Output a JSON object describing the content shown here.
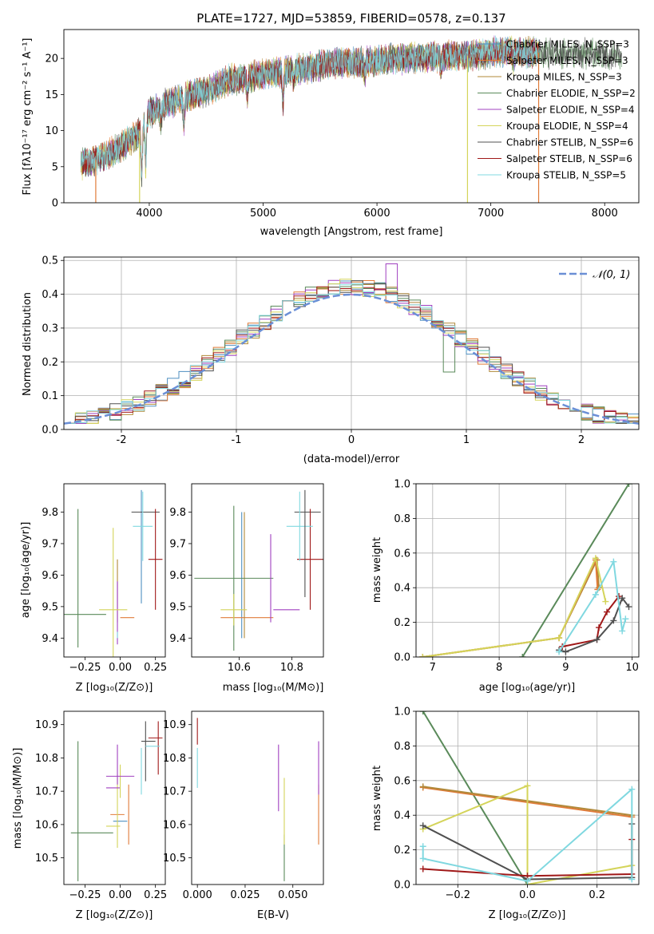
{
  "colors": {
    "chabrier_miles": "#4f8fc0",
    "salpeter_miles": "#e07b39",
    "kroupa_miles": "#b0893a",
    "chabrier_elodie": "#5a8a5a",
    "salpeter_elodie": "#a040c0",
    "kroupa_elodie": "#d4d45a",
    "chabrier_stelib": "#505050",
    "salpeter_stelib": "#a01818",
    "kroupa_stelib": "#80d8e0",
    "gaussian": "#6b8fd6",
    "grid": "#b0b0b0"
  },
  "chart_data": [
    {
      "id": "spectrum",
      "type": "line",
      "title": "PLATE=1727, MJD=53859, FIBERID=0578, z=0.137",
      "xlabel": "wavelength [Angstrom, rest frame]",
      "ylabel": "Flux [fλ10⁻¹⁷ erg cm⁻² s⁻¹ A⁻¹]",
      "xlim": [
        3250,
        8300
      ],
      "ylim": [
        0,
        24
      ],
      "xticks": [
        4000,
        5000,
        6000,
        7000,
        8000
      ],
      "yticks": [
        0,
        5,
        10,
        15,
        20
      ],
      "grid": false,
      "legend_position": "top-right",
      "legend": [
        "Chabrier MILES, N_SSP=3",
        "Salpeter MILES, N_SSP=3",
        "Kroupa MILES, N_SSP=3",
        "Chabrier ELODIE, N_SSP=2",
        "Salpeter ELODIE, N_SSP=4",
        "Kroupa ELODIE, N_SSP=4",
        "Chabrier STELIB, N_SSP=6",
        "Salpeter STELIB, N_SSP=6",
        "Kroupa STELIB, N_SSP=5"
      ],
      "continuum": [
        [
          3350,
          5.2
        ],
        [
          3500,
          5.8
        ],
        [
          3700,
          7.2
        ],
        [
          3900,
          9.5
        ],
        [
          4000,
          12.5
        ],
        [
          4200,
          14.0
        ],
        [
          4500,
          15.5
        ],
        [
          4700,
          17.0
        ],
        [
          5000,
          17.8
        ],
        [
          5300,
          18.5
        ],
        [
          5600,
          19.3
        ],
        [
          5900,
          19.5
        ],
        [
          6200,
          20.0
        ],
        [
          6500,
          20.2
        ],
        [
          6800,
          20.4
        ],
        [
          7100,
          21.0
        ],
        [
          7400,
          20.8
        ],
        [
          7700,
          20.7
        ],
        [
          8000,
          20.5
        ],
        [
          8150,
          20.3
        ]
      ],
      "absorption_lines": [
        [
          3934,
          7.0
        ],
        [
          3969,
          6.0
        ],
        [
          4102,
          2.0
        ],
        [
          4304,
          3.5
        ],
        [
          4861,
          2.5
        ],
        [
          5175,
          4.5
        ],
        [
          5270,
          1.5
        ],
        [
          5893,
          2.0
        ],
        [
          6563,
          1.5
        ],
        [
          7200,
          1.5
        ]
      ],
      "dropouts": [
        [
          3530,
          "salpeter_miles"
        ],
        [
          3915,
          "kroupa_elodie"
        ],
        [
          6795,
          "kroupa_elodie"
        ],
        [
          7420,
          "salpeter_miles"
        ]
      ],
      "series_xrange": [
        [
          3400,
          7420
        ],
        [
          3400,
          7420
        ],
        [
          3400,
          7420
        ],
        [
          3400,
          8150
        ],
        [
          3400,
          7420
        ],
        [
          3400,
          7420
        ],
        [
          3400,
          8150
        ],
        [
          3400,
          7420
        ],
        [
          3400,
          7420
        ]
      ]
    },
    {
      "id": "residuals",
      "type": "histogram",
      "xlabel": "(data-model)/error",
      "ylabel": "Normed distribution",
      "xlim": [
        -2.5,
        2.5
      ],
      "ylim": [
        0,
        0.51
      ],
      "xticks": [
        -2,
        -1,
        0,
        1,
        2
      ],
      "yticks": [
        0.0,
        0.1,
        0.2,
        0.3,
        0.4,
        0.5
      ],
      "grid": true,
      "legend_position": "top-right",
      "legend": [
        "𝒩(0, 1)"
      ],
      "bins": {
        "start": -2.5,
        "width": 0.1,
        "count": 50
      }
    },
    {
      "id": "age_vs_Z",
      "type": "errorbar",
      "xlabel": "Z [log₁₀(Z/Z⊙)]",
      "ylabel": "age  [log₁₀(age/yr)]",
      "xlim": [
        -0.4,
        0.32
      ],
      "ylim": [
        9.34,
        9.89
      ],
      "xticks": [
        -0.25,
        0.0,
        0.25
      ],
      "xticklabels": [
        "−0.25",
        "0.00",
        "0.25"
      ],
      "yticks": [
        9.4,
        9.5,
        9.6,
        9.7,
        9.8
      ],
      "grid": false,
      "points": [
        {
          "series": "chabrier_miles",
          "x": 0.15,
          "xerr": 0.0,
          "y": 9.69,
          "yerr": 0.18
        },
        {
          "series": "salpeter_miles",
          "x": 0.05,
          "xerr": 0.05,
          "y": 9.465,
          "yerr": 0.0
        },
        {
          "series": "kroupa_miles",
          "x": -0.02,
          "xerr": 0.0,
          "y": 9.55,
          "yerr": 0.1
        },
        {
          "series": "chabrier_elodie",
          "x": -0.3,
          "xerr": 0.0,
          "y": 9.59,
          "yerr": 0.22
        },
        {
          "series": "salpeter_elodie",
          "x": -0.02,
          "xerr": 0.0,
          "y": 9.48,
          "yerr": 0.1
        },
        {
          "series": "kroupa_elodie",
          "x": -0.05,
          "xerr": 0.1,
          "y": 9.49,
          "yerr": 0.26
        },
        {
          "series": "chabrier_stelib",
          "x": 0.18,
          "xerr": 0.1,
          "y": 9.8,
          "yerr": 0.0
        },
        {
          "series": "salpeter_stelib",
          "x": 0.25,
          "xerr": 0.05,
          "y": 9.65,
          "yerr": 0.16
        },
        {
          "series": "kroupa_stelib",
          "x": 0.16,
          "xerr": 0.07,
          "y": 9.755,
          "yerr": 0.11
        },
        {
          "series": "chabrier_elodie",
          "x": -0.25,
          "xerr": 0.15,
          "y": 9.475,
          "yerr": 0.0
        },
        {
          "series": "kroupa_stelib",
          "x": -0.02,
          "xerr": 0.0,
          "y": 9.41,
          "yerr": 0.01
        }
      ]
    },
    {
      "id": "age_vs_mass",
      "type": "errorbar",
      "xlabel": "mass [log₁₀(M/M⊙)]",
      "ylabel": "",
      "xlim": [
        10.42,
        10.92
      ],
      "ylim": [
        9.34,
        9.89
      ],
      "xticks": [
        10.6,
        10.8
      ],
      "yticks": [
        9.4,
        9.5,
        9.6,
        9.7,
        9.8
      ],
      "grid": false,
      "points": [
        {
          "series": "chabrier_miles",
          "x": 10.61,
          "xerr": 0.0,
          "y": 9.6,
          "yerr": 0.2
        },
        {
          "series": "salpeter_miles",
          "x": 10.63,
          "xerr": 0.1,
          "y": 9.465,
          "yerr": 0.0
        },
        {
          "series": "kroupa_miles",
          "x": 10.62,
          "xerr": 0.0,
          "y": 9.6,
          "yerr": 0.2
        },
        {
          "series": "chabrier_elodie",
          "x": 10.58,
          "xerr": 0.15,
          "y": 9.59,
          "yerr": 0.23
        },
        {
          "series": "salpeter_elodie",
          "x": 10.72,
          "xerr": 0.0,
          "y": 9.59,
          "yerr": 0.14
        },
        {
          "series": "kroupa_elodie",
          "x": 10.58,
          "xerr": 0.05,
          "y": 9.49,
          "yerr": 0.05
        },
        {
          "series": "chabrier_stelib",
          "x": 10.86,
          "xerr": 0.05,
          "y": 9.8,
          "yerr": 0.0
        },
        {
          "series": "salpeter_stelib",
          "x": 10.87,
          "xerr": 0.05,
          "y": 9.65,
          "yerr": 0.16
        },
        {
          "series": "kroupa_stelib",
          "x": 10.83,
          "xerr": 0.05,
          "y": 9.755,
          "yerr": 0.11
        },
        {
          "series": "salpeter_elodie",
          "x": 10.78,
          "xerr": 0.05,
          "y": 9.49,
          "yerr": 0.0
        },
        {
          "series": "chabrier_stelib",
          "x": 10.85,
          "xerr": 0.0,
          "y": 9.7,
          "yerr": 0.17
        }
      ]
    },
    {
      "id": "mass_weight_vs_age",
      "type": "line",
      "xlabel": "age  [log₁₀(age/yr)]",
      "ylabel": "mass weight",
      "xlim": [
        6.75,
        10.1
      ],
      "ylim": [
        0,
        1.0
      ],
      "xticks": [
        7,
        8,
        9,
        10
      ],
      "yticks": [
        0.0,
        0.2,
        0.4,
        0.6,
        0.8,
        1.0
      ],
      "grid": true,
      "series": [
        {
          "key": "chabrier_elodie",
          "points": [
            [
              8.35,
              0.0
            ],
            [
              9.95,
              1.0
            ]
          ]
        },
        {
          "key": "kroupa_miles",
          "points": [
            [
              6.85,
              0.0
            ],
            [
              8.9,
              0.11
            ],
            [
              9.47,
              0.56
            ],
            [
              9.5,
              0.4
            ]
          ]
        },
        {
          "key": "salpeter_miles",
          "points": [
            [
              6.85,
              0.0
            ],
            [
              8.9,
              0.11
            ],
            [
              9.45,
              0.56
            ],
            [
              9.48,
              0.39
            ]
          ]
        },
        {
          "key": "kroupa_elodie",
          "points": [
            [
              6.85,
              0.0
            ],
            [
              8.9,
              0.11
            ],
            [
              9.45,
              0.57
            ],
            [
              9.6,
              0.32
            ]
          ]
        },
        {
          "key": "salpeter_stelib",
          "points": [
            [
              8.95,
              0.06
            ],
            [
              9.47,
              0.1
            ],
            [
              9.5,
              0.17
            ],
            [
              9.62,
              0.26
            ],
            [
              9.8,
              0.35
            ]
          ]
        },
        {
          "key": "chabrier_stelib",
          "points": [
            [
              8.9,
              0.04
            ],
            [
              9.0,
              0.03
            ],
            [
              9.47,
              0.1
            ],
            [
              9.72,
              0.21
            ],
            [
              9.85,
              0.34
            ],
            [
              9.95,
              0.29
            ]
          ]
        },
        {
          "key": "kroupa_stelib",
          "points": [
            [
              8.9,
              0.03
            ],
            [
              9.45,
              0.36
            ],
            [
              9.72,
              0.55
            ],
            [
              9.85,
              0.15
            ],
            [
              9.9,
              0.22
            ]
          ]
        }
      ]
    },
    {
      "id": "mass_vs_Z",
      "type": "errorbar",
      "xlabel": "Z [log₁₀(Z/Z⊙)]",
      "ylabel": "mass [log₁₀(M/M⊙)]",
      "xlim": [
        -0.4,
        0.32
      ],
      "ylim": [
        10.42,
        10.94
      ],
      "xticks": [
        -0.25,
        0.0,
        0.25
      ],
      "xticklabels": [
        "−0.25",
        "0.00",
        "0.25"
      ],
      "yticks": [
        10.5,
        10.6,
        10.7,
        10.8,
        10.9
      ],
      "grid": false,
      "points": [
        {
          "series": "chabrier_elodie",
          "x": -0.3,
          "xerr": 0.0,
          "y": 10.64,
          "yerr": 0.21
        },
        {
          "series": "chabrier_elodie",
          "x": -0.2,
          "xerr": 0.15,
          "y": 10.575,
          "yerr": 0.0
        },
        {
          "series": "chabrier_miles",
          "x": 0.0,
          "xerr": 0.05,
          "y": 10.61,
          "yerr": 0.0
        },
        {
          "series": "salpeter_miles",
          "x": -0.02,
          "xerr": 0.05,
          "y": 10.63,
          "yerr": 0.0
        },
        {
          "series": "salpeter_miles",
          "x": 0.06,
          "xerr": 0.0,
          "y": 10.63,
          "yerr": 0.09
        },
        {
          "series": "kroupa_elodie",
          "x": -0.05,
          "xerr": 0.05,
          "y": 10.595,
          "yerr": 0.0
        },
        {
          "series": "kroupa_elodie",
          "x": -0.02,
          "xerr": 0.0,
          "y": 10.64,
          "yerr": 0.11
        },
        {
          "series": "salpeter_elodie",
          "x": -0.05,
          "xerr": 0.05,
          "y": 10.71,
          "yerr": 0.0
        },
        {
          "series": "salpeter_elodie",
          "x": -0.02,
          "xerr": 0.0,
          "y": 10.78,
          "yerr": 0.06
        },
        {
          "series": "kroupa_elodie",
          "x": 0.0,
          "xerr": 0.0,
          "y": 10.73,
          "yerr": 0.05
        },
        {
          "series": "salpeter_elodie",
          "x": 0.0,
          "xerr": 0.1,
          "y": 10.745,
          "yerr": 0.0
        },
        {
          "series": "chabrier_stelib",
          "x": 0.2,
          "xerr": 0.05,
          "y": 10.85,
          "yerr": 0.0
        },
        {
          "series": "chabrier_stelib",
          "x": 0.18,
          "xerr": 0.0,
          "y": 10.82,
          "yerr": 0.09
        },
        {
          "series": "salpeter_stelib",
          "x": 0.25,
          "xerr": 0.05,
          "y": 10.86,
          "yerr": 0.0
        },
        {
          "series": "salpeter_stelib",
          "x": 0.27,
          "xerr": 0.0,
          "y": 10.83,
          "yerr": 0.08
        },
        {
          "series": "kroupa_stelib",
          "x": 0.23,
          "xerr": 0.05,
          "y": 10.835,
          "yerr": 0.0
        },
        {
          "series": "kroupa_stelib",
          "x": 0.15,
          "xerr": 0.0,
          "y": 10.76,
          "yerr": 0.07
        }
      ]
    },
    {
      "id": "mass_vs_ebv",
      "type": "errorbar",
      "xlabel": "E(B-V)",
      "ylabel": "",
      "xlim": [
        -0.003,
        0.066
      ],
      "ylim": [
        10.42,
        10.94
      ],
      "xticks": [
        0.0,
        0.025,
        0.05
      ],
      "xticklabels": [
        "0.000",
        "0.025",
        "0.050"
      ],
      "yticks": [
        10.5,
        10.6,
        10.7,
        10.8,
        10.9
      ],
      "grid": false,
      "points": [
        {
          "series": "salpeter_stelib",
          "x": 0.0,
          "xerr": 0.0,
          "y": 10.88,
          "yerr": 0.04
        },
        {
          "series": "kroupa_stelib",
          "x": 0.0,
          "xerr": 0.0,
          "y": 10.77,
          "yerr": 0.06
        },
        {
          "series": "salpeter_elodie",
          "x": 0.0425,
          "xerr": 0.0,
          "y": 10.74,
          "yerr": 0.1
        },
        {
          "series": "chabrier_elodie",
          "x": 0.0455,
          "xerr": 0.0,
          "y": 10.5,
          "yerr": 0.07
        },
        {
          "series": "kroupa_elodie",
          "x": 0.0455,
          "xerr": 0.0,
          "y": 10.64,
          "yerr": 0.1
        },
        {
          "series": "salpeter_miles",
          "x": 0.0635,
          "xerr": 0.0,
          "y": 10.63,
          "yerr": 0.09
        },
        {
          "series": "salpeter_elodie",
          "x": 0.0635,
          "xerr": 0.0,
          "y": 10.77,
          "yerr": 0.08
        }
      ]
    },
    {
      "id": "mass_weight_vs_Z",
      "type": "line",
      "xlabel": "Z [log₁₀(Z/Z⊙)]",
      "ylabel": "mass weight",
      "xlim": [
        -0.32,
        0.32
      ],
      "ylim": [
        0,
        1.0
      ],
      "xticks": [
        -0.2,
        0.0,
        0.2
      ],
      "xticklabels": [
        "−0.2",
        "0.0",
        "0.2"
      ],
      "yticks": [
        0.0,
        0.2,
        0.4,
        0.6,
        0.8,
        1.0
      ],
      "grid": true,
      "series": [
        {
          "key": "chabrier_elodie",
          "points": [
            [
              -0.3,
              1.0
            ],
            [
              0.0,
              0.0
            ]
          ]
        },
        {
          "key": "salpeter_miles",
          "points": [
            [
              -0.3,
              0.56
            ],
            [
              0.3,
              0.39
            ],
            [
              0.3,
              0.04
            ]
          ]
        },
        {
          "key": "kroupa_miles",
          "points": [
            [
              -0.3,
              0.565
            ],
            [
              0.3,
              0.4
            ]
          ]
        },
        {
          "key": "kroupa_elodie",
          "points": [
            [
              -0.3,
              0.32
            ],
            [
              0.0,
              0.57
            ],
            [
              0.0,
              0.0
            ],
            [
              0.3,
              0.11
            ]
          ]
        },
        {
          "key": "chabrier_stelib",
          "points": [
            [
              -0.3,
              0.34
            ],
            [
              0.0,
              0.03
            ],
            [
              0.3,
              0.04
            ],
            [
              0.3,
              0.35
            ]
          ]
        },
        {
          "key": "salpeter_stelib",
          "points": [
            [
              -0.3,
              0.09
            ],
            [
              0.0,
              0.05
            ],
            [
              0.3,
              0.06
            ],
            [
              0.3,
              0.26
            ]
          ]
        },
        {
          "key": "kroupa_stelib",
          "points": [
            [
              -0.3,
              0.22
            ],
            [
              -0.3,
              0.15
            ],
            [
              0.0,
              0.02
            ],
            [
              0.3,
              0.55
            ],
            [
              0.3,
              0.03
            ]
          ]
        }
      ]
    }
  ]
}
